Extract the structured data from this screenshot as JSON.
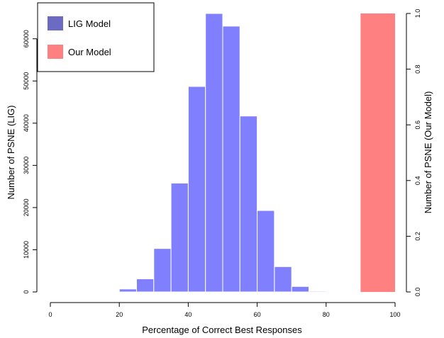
{
  "chart_data": {
    "type": "bar",
    "xlabel": "Percentage of Correct Best Responses",
    "ylabel": "Number of PSNE (LIG)",
    "ylabel_right": "Number of PSNE (Our Model)",
    "xlim": [
      0,
      100
    ],
    "ylim": [
      0,
      66000
    ],
    "ylim_right": [
      0,
      1
    ],
    "x_ticks": [
      "0",
      "20",
      "40",
      "60",
      "80",
      "100"
    ],
    "y_ticks": [
      "0",
      "10000",
      "20000",
      "30000",
      "40000",
      "50000",
      "60000"
    ],
    "y_ticks_right": [
      "0.0",
      "0.2",
      "0.4",
      "0.6",
      "0.8",
      "1.0"
    ],
    "grid": false,
    "legend_position": "top-left",
    "series": [
      {
        "name": "LIG Model",
        "color": "#8080ff",
        "legend_color": "#6b6bc4",
        "axis": "left",
        "bins": [
          {
            "x0": 15,
            "x1": 20,
            "value": 150
          },
          {
            "x0": 20,
            "x1": 25,
            "value": 700
          },
          {
            "x0": 25,
            "x1": 30,
            "value": 3100
          },
          {
            "x0": 30,
            "x1": 35,
            "value": 10300
          },
          {
            "x0": 35,
            "x1": 40,
            "value": 25800
          },
          {
            "x0": 40,
            "x1": 45,
            "value": 48700
          },
          {
            "x0": 45,
            "x1": 50,
            "value": 66000
          },
          {
            "x0": 50,
            "x1": 55,
            "value": 63000
          },
          {
            "x0": 55,
            "x1": 60,
            "value": 41700
          },
          {
            "x0": 60,
            "x1": 65,
            "value": 19300
          },
          {
            "x0": 65,
            "x1": 70,
            "value": 6000
          },
          {
            "x0": 70,
            "x1": 75,
            "value": 1300
          },
          {
            "x0": 75,
            "x1": 80,
            "value": 200
          }
        ]
      },
      {
        "name": "Our Model",
        "color": "#ff8080",
        "legend_color": "#ff8080",
        "axis": "right",
        "bins": [
          {
            "x0": 90,
            "x1": 100,
            "value": 1.0
          }
        ]
      }
    ]
  }
}
